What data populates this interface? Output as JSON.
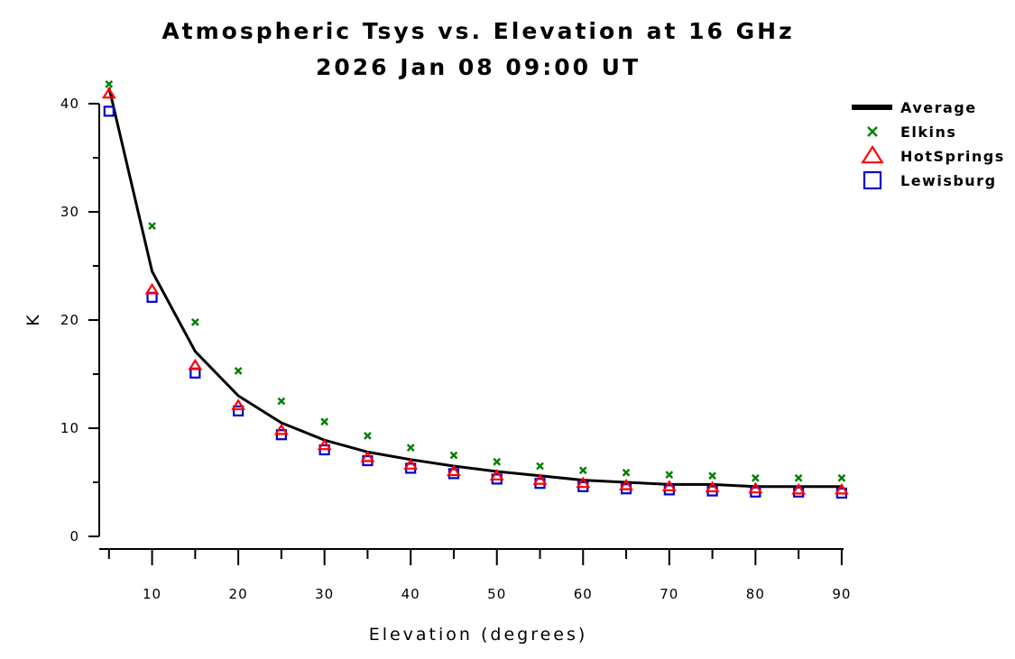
{
  "chart_data": {
    "type": "line",
    "title": "Atmospheric Tsys vs. Elevation at 16 GHz",
    "subtitle": "2026 Jan 08 09:00 UT",
    "xlabel": "Elevation (degrees)",
    "ylabel": "K",
    "xlim": [
      2.3,
      92
    ],
    "ylim": [
      0,
      40
    ],
    "grid": false,
    "legend_position": "top-right",
    "x_ticks": [
      10,
      20,
      30,
      40,
      50,
      60,
      70,
      80,
      90
    ],
    "y_ticks": [
      0,
      10,
      20,
      30,
      40
    ],
    "x": [
      5,
      10,
      15,
      20,
      25,
      30,
      35,
      40,
      45,
      50,
      55,
      60,
      65,
      70,
      75,
      80,
      85,
      90
    ],
    "series": [
      {
        "name": "Average",
        "style": "line",
        "color": "#000000",
        "values": [
          41.5,
          24.5,
          17.1,
          13.0,
          10.5,
          8.9,
          7.8,
          7.1,
          6.5,
          6.0,
          5.6,
          5.2,
          5.0,
          4.8,
          4.8,
          4.6,
          4.6,
          4.6
        ]
      },
      {
        "name": "Elkins",
        "style": "x",
        "color": "#008000",
        "values": [
          41.8,
          28.7,
          19.8,
          15.3,
          12.5,
          10.6,
          9.3,
          8.2,
          7.5,
          6.9,
          6.5,
          6.1,
          5.9,
          5.7,
          5.6,
          5.4,
          5.4,
          5.4
        ]
      },
      {
        "name": "HotSprings",
        "style": "triangle",
        "color": "#ff0000",
        "values": [
          40.9,
          22.8,
          15.8,
          12.1,
          9.8,
          8.4,
          7.3,
          6.6,
          6.0,
          5.6,
          5.2,
          4.9,
          4.7,
          4.6,
          4.5,
          4.4,
          4.3,
          4.3
        ]
      },
      {
        "name": "Lewisburg",
        "style": "square",
        "color": "#0000cc",
        "values": [
          39.3,
          22.1,
          15.1,
          11.6,
          9.4,
          8.0,
          7.0,
          6.3,
          5.8,
          5.3,
          4.9,
          4.6,
          4.4,
          4.3,
          4.2,
          4.1,
          4.1,
          4.0
        ]
      }
    ]
  }
}
